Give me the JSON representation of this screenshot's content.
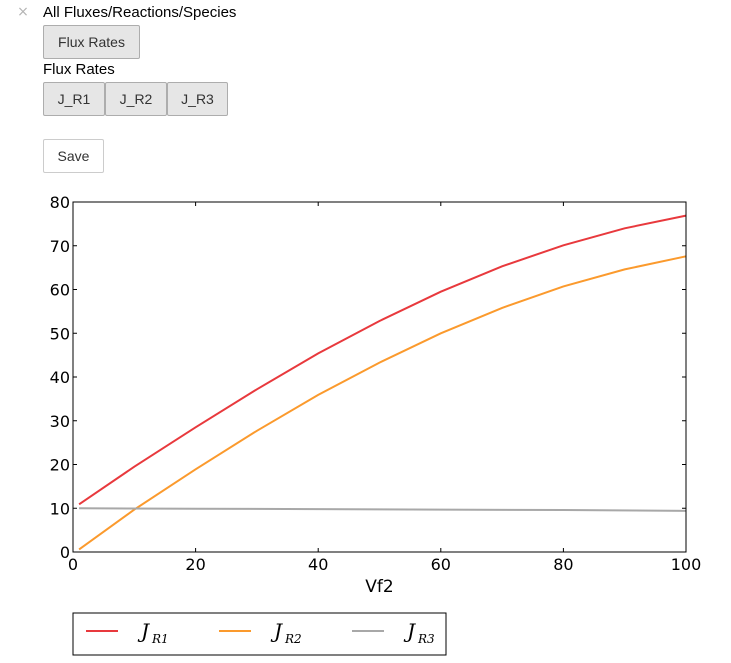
{
  "header": {
    "close_glyph": "×",
    "title": "All Fluxes/Reactions/Species"
  },
  "menu": {
    "flux_rates_button": "Flux Rates",
    "section_label": "Flux Rates",
    "tabs": [
      {
        "label": "J_R1"
      },
      {
        "label": "J_R2"
      },
      {
        "label": "J_R3"
      }
    ],
    "save_label": "Save"
  },
  "chart_data": {
    "type": "line",
    "xlabel": "Vf2",
    "ylabel": "",
    "xlim": [
      0,
      100
    ],
    "ylim": [
      0,
      80
    ],
    "xticks": [
      "0",
      "20",
      "40",
      "60",
      "80",
      "100"
    ],
    "yticks": [
      "0",
      "10",
      "20",
      "30",
      "40",
      "50",
      "60",
      "70",
      "80"
    ],
    "grid": false,
    "legend_position": "bottom",
    "series": [
      {
        "name": "J_R1",
        "legend_main": "J",
        "legend_sub": "R1",
        "color": "#e8393d",
        "x": [
          1,
          10,
          20,
          30,
          40,
          50,
          60,
          70,
          80,
          90,
          100
        ],
        "y": [
          10.9,
          19.5,
          28.5,
          37.2,
          45.4,
          52.8,
          59.5,
          65.3,
          70.1,
          74.0,
          76.9
        ]
      },
      {
        "name": "J_R2",
        "legend_main": "J",
        "legend_sub": "R2",
        "color": "#fb9a2d",
        "x": [
          1,
          10,
          20,
          30,
          40,
          50,
          60,
          70,
          80,
          90,
          100
        ],
        "y": [
          0.6,
          9.7,
          18.9,
          27.7,
          35.9,
          43.3,
          50.0,
          55.8,
          60.7,
          64.6,
          67.6
        ]
      },
      {
        "name": "J_R3",
        "legend_main": "J",
        "legend_sub": "R3",
        "color": "#a8a8a8",
        "x": [
          1,
          20,
          40,
          60,
          80,
          100
        ],
        "y": [
          10.0,
          9.9,
          9.8,
          9.7,
          9.6,
          9.4
        ]
      }
    ]
  }
}
